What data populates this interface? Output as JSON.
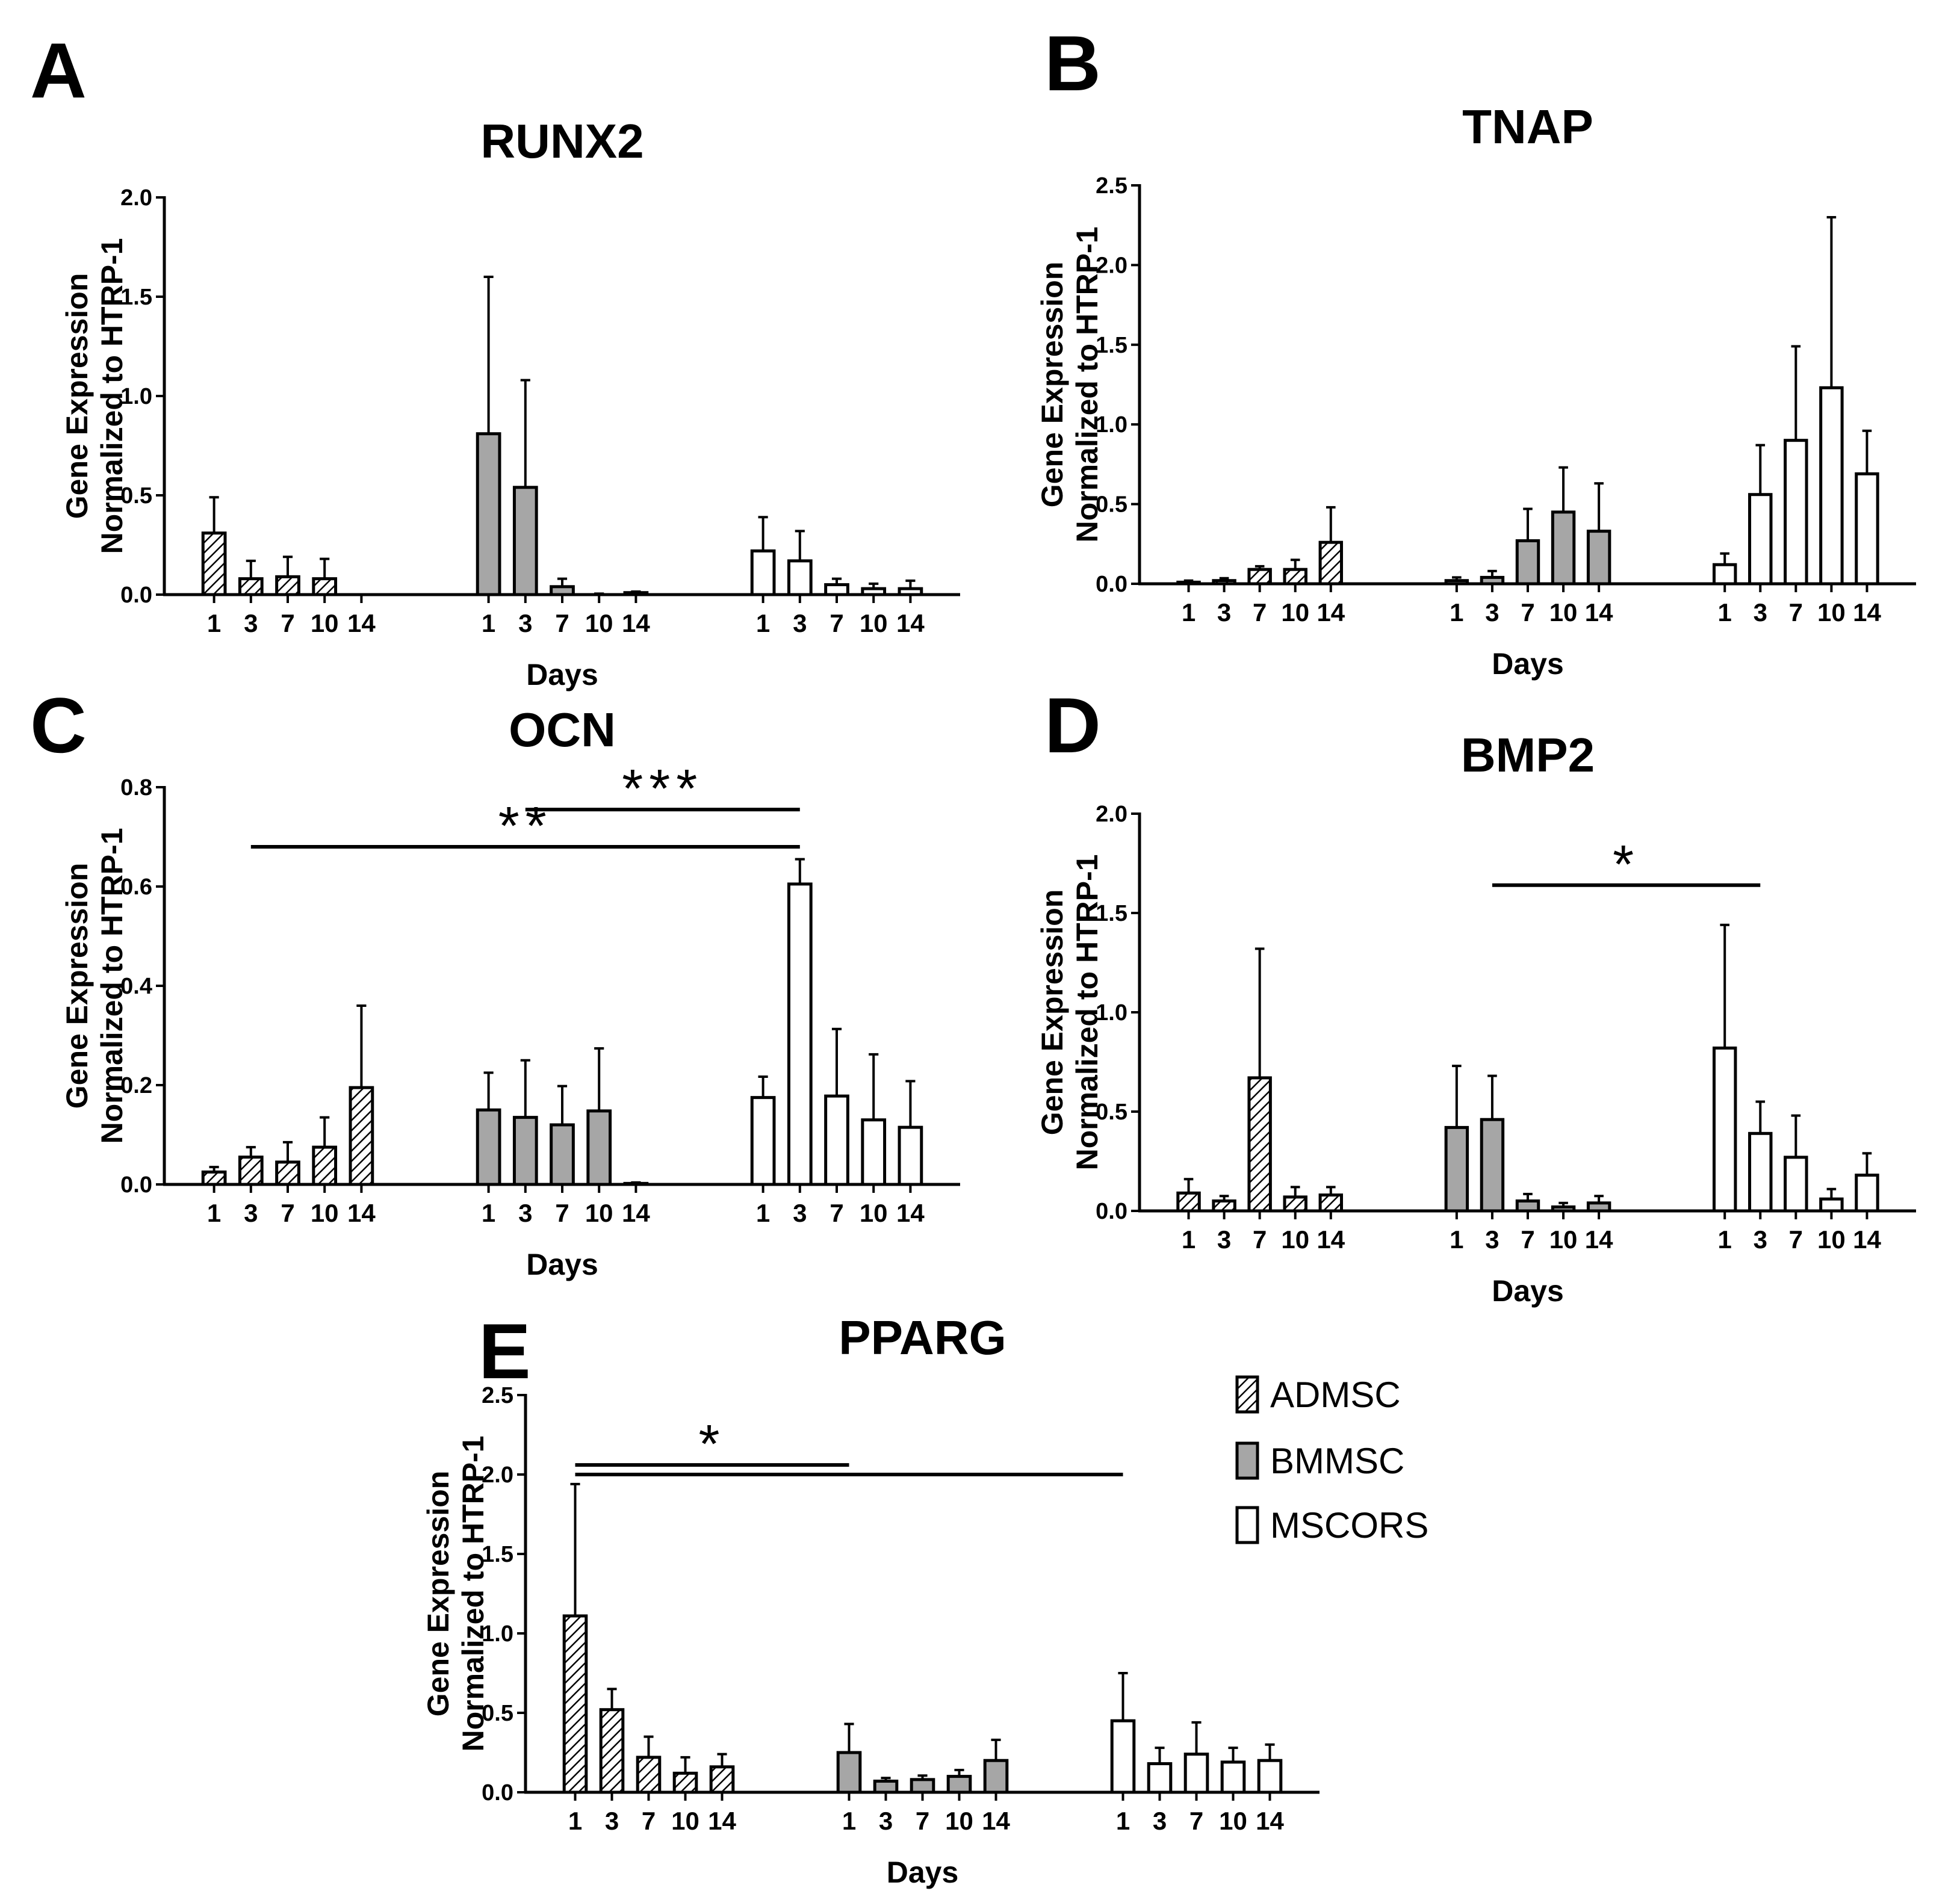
{
  "figure": {
    "days_label": "Days",
    "ylabel_line1": "Gene Expression",
    "ylabel_line2": "Normalized to HTRP-1"
  },
  "legend": [
    {
      "name": "ADMSC",
      "pattern": "hatch"
    },
    {
      "name": "BMMSC",
      "pattern": "gray"
    },
    {
      "name": "MSCORS",
      "pattern": "white"
    }
  ],
  "colors": {
    "bmmsc_fill": "#a6a6a6",
    "mscors_fill": "#ffffff",
    "stroke": "#000000"
  },
  "chart_data": [
    {
      "type": "bar",
      "panel": "A",
      "title": "RUNX2",
      "xlabel": "Days",
      "ylabel": "Gene Expression Normalized to HTRP-1",
      "categories": [
        "1",
        "3",
        "7",
        "10",
        "14"
      ],
      "ylim": [
        0,
        2.0
      ],
      "yticks": [
        "0.0",
        "0.5",
        "1.0",
        "1.5",
        "2.0"
      ],
      "series": [
        {
          "name": "ADMSC",
          "values": [
            0.31,
            0.08,
            0.09,
            0.08,
            0.0
          ],
          "errors": [
            0.18,
            0.09,
            0.1,
            0.1,
            0.0
          ]
        },
        {
          "name": "BMMSC",
          "values": [
            0.81,
            0.54,
            0.04,
            0.0,
            0.01
          ],
          "errors": [
            0.79,
            0.54,
            0.04,
            0.005,
            0.005
          ]
        },
        {
          "name": "MSCORS",
          "values": [
            0.22,
            0.17,
            0.05,
            0.03,
            0.03
          ],
          "errors": [
            0.17,
            0.15,
            0.03,
            0.025,
            0.04
          ]
        }
      ],
      "annotations": []
    },
    {
      "type": "bar",
      "panel": "B",
      "title": "TNAP",
      "xlabel": "Days",
      "ylabel": "Gene Expression Normalized to HTRP-1",
      "categories": [
        "1",
        "3",
        "7",
        "10",
        "14"
      ],
      "ylim": [
        0,
        2.5
      ],
      "yticks": [
        "0.0",
        "0.5",
        "1.0",
        "1.5",
        "2.0",
        "2.5"
      ],
      "series": [
        {
          "name": "ADMSC",
          "values": [
            0.01,
            0.02,
            0.09,
            0.09,
            0.26
          ],
          "errors": [
            0.01,
            0.015,
            0.02,
            0.06,
            0.22
          ]
        },
        {
          "name": "BMMSC",
          "values": [
            0.02,
            0.04,
            0.27,
            0.45,
            0.33
          ],
          "errors": [
            0.02,
            0.04,
            0.2,
            0.28,
            0.3
          ]
        },
        {
          "name": "MSCORS",
          "values": [
            0.12,
            0.56,
            0.9,
            1.23,
            0.69
          ],
          "errors": [
            0.07,
            0.31,
            0.59,
            1.07,
            0.27
          ]
        }
      ],
      "annotations": []
    },
    {
      "type": "bar",
      "panel": "C",
      "title": "OCN",
      "xlabel": "Days",
      "ylabel": "Gene Expression Normalized to HTRP-1",
      "categories": [
        "1",
        "3",
        "7",
        "10",
        "14"
      ],
      "ylim": [
        0,
        0.8
      ],
      "yticks": [
        "0.0",
        "0.2",
        "0.4",
        "0.6",
        "0.8"
      ],
      "series": [
        {
          "name": "ADMSC",
          "values": [
            0.025,
            0.055,
            0.045,
            0.075,
            0.195
          ],
          "errors": [
            0.01,
            0.02,
            0.04,
            0.06,
            0.165
          ]
        },
        {
          "name": "BMMSC",
          "values": [
            0.15,
            0.135,
            0.12,
            0.148,
            0.002
          ],
          "errors": [
            0.075,
            0.115,
            0.078,
            0.126,
            0.002
          ]
        },
        {
          "name": "MSCORS",
          "values": [
            0.175,
            0.605,
            0.178,
            0.13,
            0.115
          ],
          "errors": [
            0.042,
            0.05,
            0.135,
            0.132,
            0.093
          ]
        }
      ],
      "annotations": [
        {
          "label": "***",
          "from": {
            "group": "BMMSC",
            "day": "3"
          },
          "to": {
            "group": "MSCORS",
            "day": "3"
          },
          "y": 0.755
        },
        {
          "label": "**",
          "from": {
            "group": "ADMSC",
            "day": "3"
          },
          "to": {
            "group": "MSCORS",
            "day": "3"
          },
          "y": 0.68
        }
      ]
    },
    {
      "type": "bar",
      "panel": "D",
      "title": "BMP2",
      "xlabel": "Days",
      "ylabel": "Gene Expression Normalized to HTRP-1",
      "categories": [
        "1",
        "3",
        "7",
        "10",
        "14"
      ],
      "ylim": [
        0,
        2.0
      ],
      "yticks": [
        "0.0",
        "0.5",
        "1.0",
        "1.5",
        "2.0"
      ],
      "series": [
        {
          "name": "ADMSC",
          "values": [
            0.09,
            0.05,
            0.67,
            0.07,
            0.08
          ],
          "errors": [
            0.07,
            0.025,
            0.65,
            0.05,
            0.04
          ]
        },
        {
          "name": "BMMSC",
          "values": [
            0.42,
            0.46,
            0.05,
            0.02,
            0.04
          ],
          "errors": [
            0.31,
            0.22,
            0.035,
            0.02,
            0.035
          ]
        },
        {
          "name": "MSCORS",
          "values": [
            0.82,
            0.39,
            0.27,
            0.06,
            0.18
          ],
          "errors": [
            0.62,
            0.16,
            0.21,
            0.05,
            0.11
          ]
        }
      ],
      "annotations": [
        {
          "label": "*",
          "from": {
            "group": "BMMSC",
            "day": "3"
          },
          "to": {
            "group": "MSCORS",
            "day": "3"
          },
          "y": 1.64
        }
      ]
    },
    {
      "type": "bar",
      "panel": "E",
      "title": "PPARG",
      "xlabel": "Days",
      "ylabel": "Gene Expression Normalized to HTRP-1",
      "categories": [
        "1",
        "3",
        "7",
        "10",
        "14"
      ],
      "ylim": [
        0,
        2.5
      ],
      "yticks": [
        "0.0",
        "0.5",
        "1.0",
        "1.5",
        "2.0",
        "2.5"
      ],
      "series": [
        {
          "name": "ADMSC",
          "values": [
            1.11,
            0.52,
            0.22,
            0.12,
            0.16
          ],
          "errors": [
            0.83,
            0.13,
            0.13,
            0.1,
            0.08
          ]
        },
        {
          "name": "BMMSC",
          "values": [
            0.25,
            0.07,
            0.08,
            0.1,
            0.2
          ],
          "errors": [
            0.18,
            0.02,
            0.025,
            0.04,
            0.13
          ]
        },
        {
          "name": "MSCORS",
          "values": [
            0.45,
            0.18,
            0.24,
            0.19,
            0.2
          ],
          "errors": [
            0.3,
            0.1,
            0.2,
            0.09,
            0.1
          ]
        }
      ],
      "annotations": [
        {
          "label": "*",
          "from": {
            "group": "ADMSC",
            "day": "1"
          },
          "to": {
            "group": "BMMSC",
            "day": "1"
          },
          "y": 2.06
        },
        {
          "label": "",
          "from": {
            "group": "ADMSC",
            "day": "1"
          },
          "to": {
            "group": "MSCORS",
            "day": "1"
          },
          "y": 2.0
        }
      ]
    }
  ]
}
